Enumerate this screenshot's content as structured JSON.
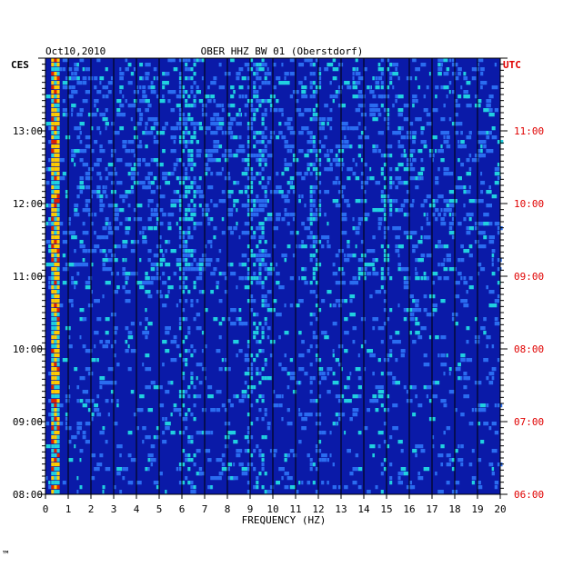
{
  "chart_data": {
    "type": "heatmap",
    "title": "OBER HHZ BW 01 (Oberstdorf)",
    "date": "Oct10,2010",
    "xlabel": "FREQUENCY (HZ)",
    "xlim": [
      0,
      20
    ],
    "x_ticks": [
      "0",
      "1",
      "2",
      "3",
      "4",
      "5",
      "6",
      "7",
      "8",
      "9",
      "10",
      "11",
      "12",
      "13",
      "14",
      "15",
      "16",
      "17",
      "18",
      "19",
      "20"
    ],
    "left_axis": {
      "label": "CES",
      "ticks": [
        "13:00",
        "12:00",
        "11:00",
        "10:00",
        "09:00",
        "08:00"
      ],
      "range": [
        "08:00",
        "14:00"
      ]
    },
    "right_axis": {
      "label": "UTC",
      "ticks": [
        "11:00",
        "10:00",
        "09:00",
        "08:00",
        "07:00",
        "06:00"
      ],
      "range": [
        "06:00",
        "12:00"
      ]
    },
    "energy_bands_hz": [
      {
        "from": 0.2,
        "to": 0.6,
        "level": "high"
      },
      {
        "from": 5.9,
        "to": 6.6,
        "level": "medium"
      },
      {
        "from": 8.9,
        "to": 9.7,
        "level": "medium"
      },
      {
        "from": 11.6,
        "to": 12.1,
        "level": "medium"
      },
      {
        "from": 14.8,
        "to": 15.2,
        "level": "low"
      }
    ],
    "grid": true,
    "colors": {
      "background": "#0a1aa8",
      "high": "#ffcc00",
      "peak": "#e02000",
      "mid": "#20d0e0",
      "low": "#2a6cf0",
      "right_axis_text": "#e00000"
    }
  },
  "footer_mark": "™"
}
